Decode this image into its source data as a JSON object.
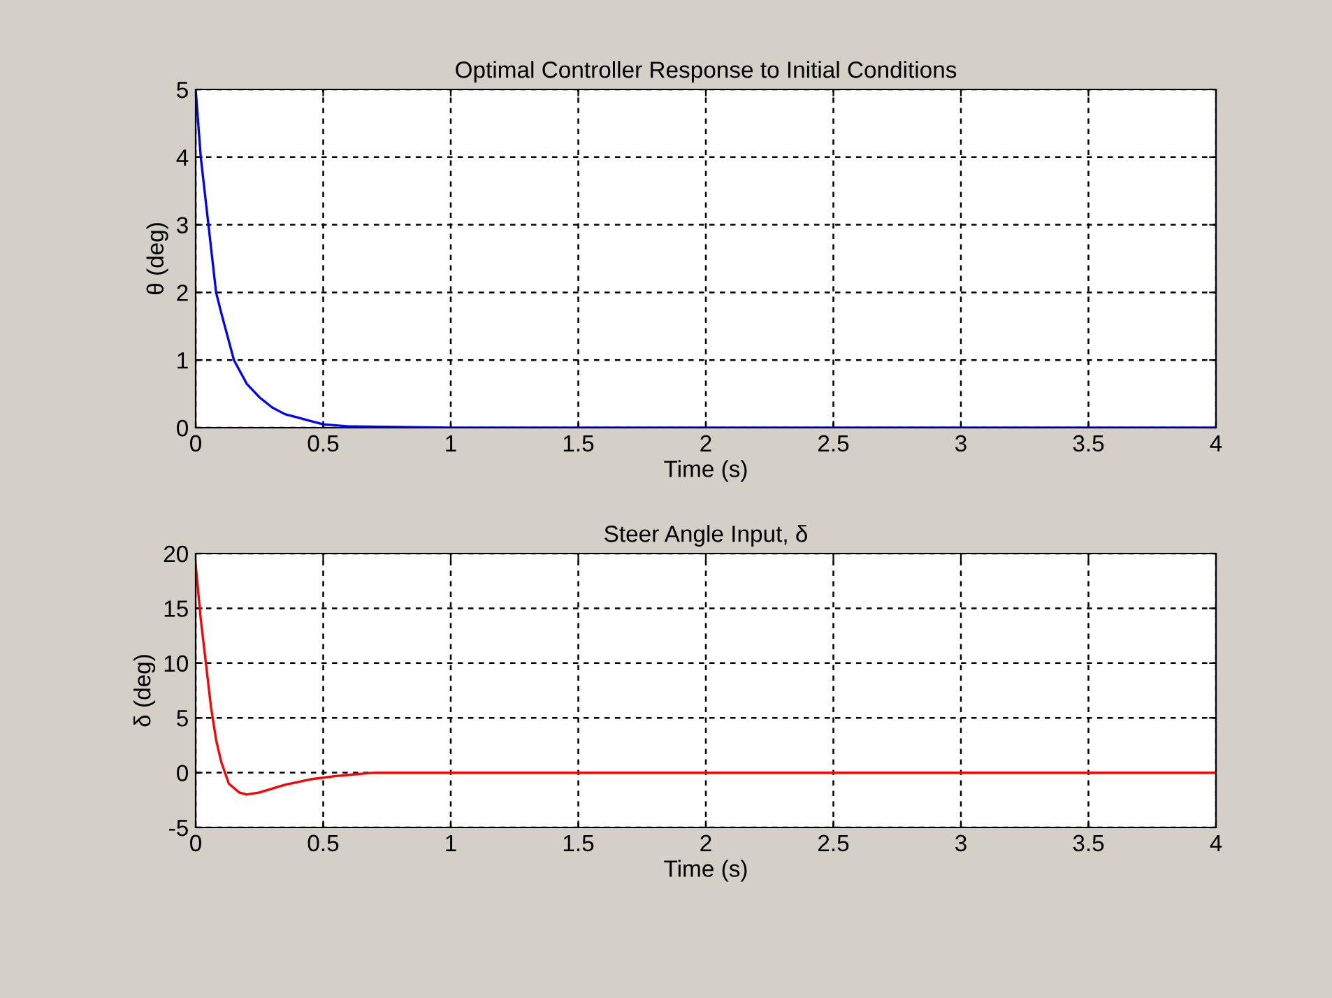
{
  "chart_data": [
    {
      "type": "line",
      "title": "Optimal Controller Response to Initial Conditions",
      "xlabel": "Time (s)",
      "ylabel": "θ (deg)",
      "x": [
        0,
        0.02,
        0.05,
        0.08,
        0.1,
        0.15,
        0.2,
        0.25,
        0.3,
        0.35,
        0.4,
        0.45,
        0.5,
        0.6,
        1,
        2,
        3,
        4
      ],
      "series": [
        {
          "color": "#0000ff",
          "values": [
            5,
            4,
            3,
            2,
            1.7,
            1,
            0.65,
            0.45,
            0.3,
            0.2,
            0.15,
            0.1,
            0.05,
            0.02,
            0,
            0,
            0,
            0
          ]
        }
      ],
      "xlim": [
        0,
        4
      ],
      "xticks": [
        0,
        0.5,
        1,
        1.5,
        2,
        2.5,
        3,
        3.5,
        4
      ],
      "ylim": [
        0,
        5
      ],
      "yticks": [
        0,
        1,
        2,
        3,
        4,
        5
      ],
      "grid": true,
      "line_style": "solid"
    },
    {
      "type": "line",
      "title": "Steer Angle Input, δ",
      "xlabel": "Time (s)",
      "ylabel": "δ (deg)",
      "x": [
        0,
        0.02,
        0.04,
        0.06,
        0.08,
        0.1,
        0.13,
        0.17,
        0.2,
        0.25,
        0.35,
        0.45,
        0.55,
        0.65,
        0.7,
        1,
        2,
        3,
        4
      ],
      "series": [
        {
          "color": "#ff0000",
          "values": [
            19,
            14,
            10,
            6,
            3,
            1,
            -1,
            -1.8,
            -2,
            -1.8,
            -1.1,
            -0.6,
            -0.3,
            -0.1,
            0,
            0,
            0,
            0,
            0
          ]
        }
      ],
      "xlim": [
        0,
        4
      ],
      "xticks": [
        0,
        0.5,
        1,
        1.5,
        2,
        2.5,
        3,
        3.5,
        4
      ],
      "ylim": [
        -5,
        20
      ],
      "yticks": [
        -5,
        0,
        5,
        10,
        15,
        20
      ],
      "grid": true,
      "line_style": "solid"
    }
  ]
}
